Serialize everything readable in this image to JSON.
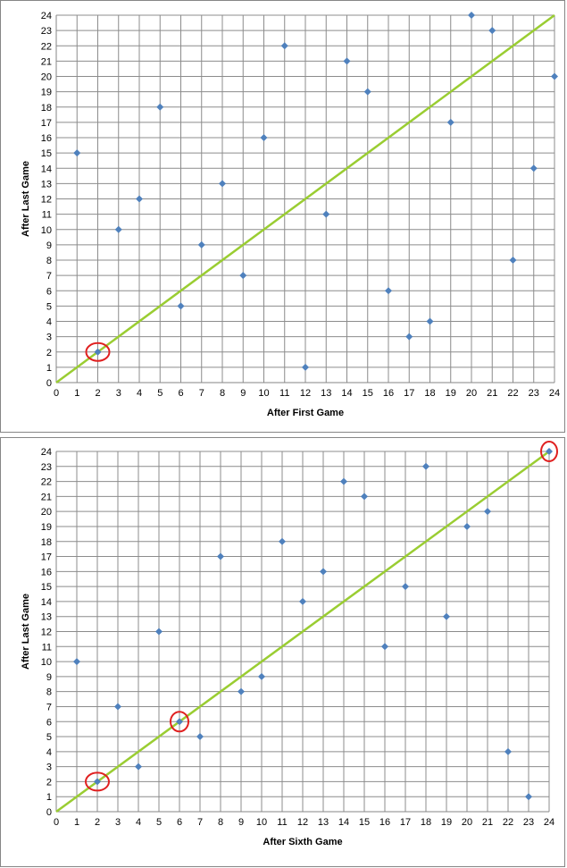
{
  "chart_data": [
    {
      "type": "scatter",
      "title": "",
      "xlabel": "After First Game",
      "ylabel": "After Last Game",
      "xlim": [
        0,
        24
      ],
      "ylim": [
        0,
        24
      ],
      "x_ticks": [
        0,
        1,
        2,
        3,
        4,
        5,
        6,
        7,
        8,
        9,
        10,
        11,
        12,
        13,
        14,
        15,
        16,
        17,
        18,
        19,
        20,
        21,
        22,
        23,
        24
      ],
      "y_ticks": [
        0,
        1,
        2,
        3,
        4,
        5,
        6,
        7,
        8,
        9,
        10,
        11,
        12,
        13,
        14,
        15,
        16,
        17,
        18,
        19,
        20,
        21,
        22,
        23,
        24
      ],
      "grid": true,
      "legend": "none",
      "marker": "diamond",
      "marker_color": "#4F81BD",
      "reference_line": {
        "from": [
          0,
          0
        ],
        "to": [
          24,
          24
        ],
        "color": "#9ACD32"
      },
      "points": [
        {
          "x": 1,
          "y": 15
        },
        {
          "x": 2,
          "y": 2
        },
        {
          "x": 3,
          "y": 10
        },
        {
          "x": 4,
          "y": 12
        },
        {
          "x": 5,
          "y": 18
        },
        {
          "x": 6,
          "y": 5
        },
        {
          "x": 7,
          "y": 9
        },
        {
          "x": 8,
          "y": 13
        },
        {
          "x": 9,
          "y": 7
        },
        {
          "x": 10,
          "y": 16
        },
        {
          "x": 11,
          "y": 22
        },
        {
          "x": 12,
          "y": 1
        },
        {
          "x": 13,
          "y": 11
        },
        {
          "x": 14,
          "y": 21
        },
        {
          "x": 15,
          "y": 19
        },
        {
          "x": 16,
          "y": 6
        },
        {
          "x": 17,
          "y": 3
        },
        {
          "x": 18,
          "y": 4
        },
        {
          "x": 19,
          "y": 17
        },
        {
          "x": 20,
          "y": 24
        },
        {
          "x": 21,
          "y": 23
        },
        {
          "x": 22,
          "y": 8
        },
        {
          "x": 23,
          "y": 14
        },
        {
          "x": 24,
          "y": 20
        }
      ],
      "circled_points": [
        {
          "x": 2,
          "y": 2
        }
      ],
      "circle_color": "#E02020"
    },
    {
      "type": "scatter",
      "title": "",
      "xlabel": "After Sixth Game",
      "ylabel": "After Last Game",
      "xlim": [
        0,
        24
      ],
      "ylim": [
        0,
        24
      ],
      "x_ticks": [
        0,
        1,
        2,
        3,
        4,
        5,
        6,
        7,
        8,
        9,
        10,
        11,
        12,
        13,
        14,
        15,
        16,
        17,
        18,
        19,
        20,
        21,
        22,
        23,
        24
      ],
      "y_ticks": [
        0,
        1,
        2,
        3,
        4,
        5,
        6,
        7,
        8,
        9,
        10,
        11,
        12,
        13,
        14,
        15,
        16,
        17,
        18,
        19,
        20,
        21,
        22,
        23,
        24
      ],
      "grid": true,
      "legend": "none",
      "marker": "diamond",
      "marker_color": "#4F81BD",
      "reference_line": {
        "from": [
          0,
          0
        ],
        "to": [
          24,
          24
        ],
        "color": "#9ACD32"
      },
      "points": [
        {
          "x": 1,
          "y": 10
        },
        {
          "x": 2,
          "y": 2
        },
        {
          "x": 3,
          "y": 7
        },
        {
          "x": 4,
          "y": 3
        },
        {
          "x": 5,
          "y": 12
        },
        {
          "x": 6,
          "y": 6
        },
        {
          "x": 7,
          "y": 5
        },
        {
          "x": 8,
          "y": 17
        },
        {
          "x": 9,
          "y": 8
        },
        {
          "x": 10,
          "y": 9
        },
        {
          "x": 11,
          "y": 18
        },
        {
          "x": 12,
          "y": 14
        },
        {
          "x": 13,
          "y": 16
        },
        {
          "x": 14,
          "y": 22
        },
        {
          "x": 15,
          "y": 21
        },
        {
          "x": 16,
          "y": 11
        },
        {
          "x": 17,
          "y": 15
        },
        {
          "x": 18,
          "y": 23
        },
        {
          "x": 19,
          "y": 13
        },
        {
          "x": 20,
          "y": 19
        },
        {
          "x": 21,
          "y": 20
        },
        {
          "x": 22,
          "y": 4
        },
        {
          "x": 23,
          "y": 1
        },
        {
          "x": 24,
          "y": 24
        }
      ],
      "circled_points": [
        {
          "x": 2,
          "y": 2
        },
        {
          "x": 6,
          "y": 6
        },
        {
          "x": 24,
          "y": 24
        }
      ],
      "circle_color": "#E02020"
    }
  ]
}
